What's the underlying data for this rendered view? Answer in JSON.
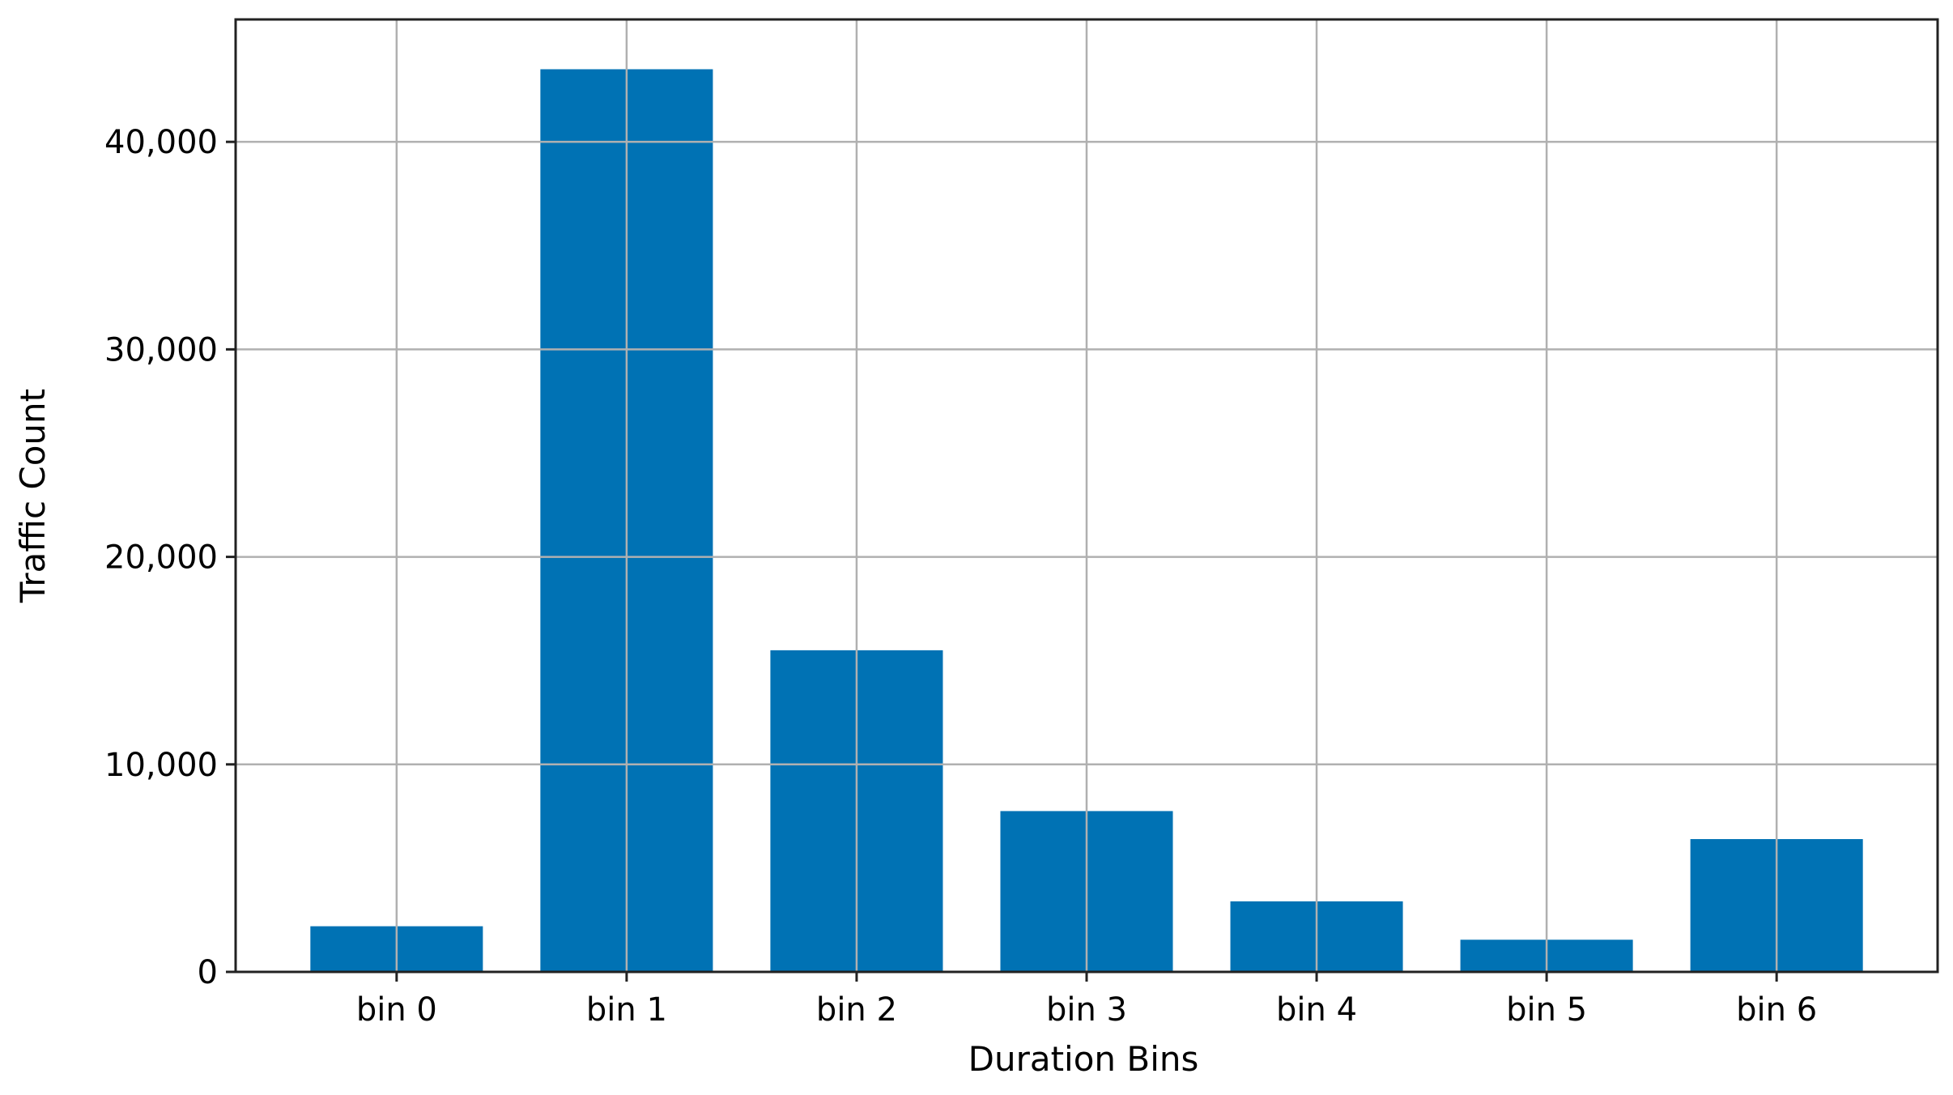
{
  "chart_data": {
    "type": "bar",
    "title": "",
    "xlabel": "Duration Bins",
    "ylabel": "Traffic Count",
    "categories": [
      "bin 0",
      "bin 1",
      "bin 2",
      "bin 3",
      "bin 4",
      "bin 5",
      "bin 6"
    ],
    "values": [
      2200,
      43500,
      15500,
      7750,
      3400,
      1550,
      6400
    ],
    "ylim": [
      0,
      45900
    ],
    "yticks": [
      0,
      10000,
      20000,
      30000,
      40000
    ],
    "ytick_labels": [
      "0",
      "10,000",
      "20,000",
      "30,000",
      "40,000"
    ],
    "grid": true,
    "legend": "none",
    "bar_color": "#0072b4",
    "grid_color": "#b0b0b0"
  }
}
